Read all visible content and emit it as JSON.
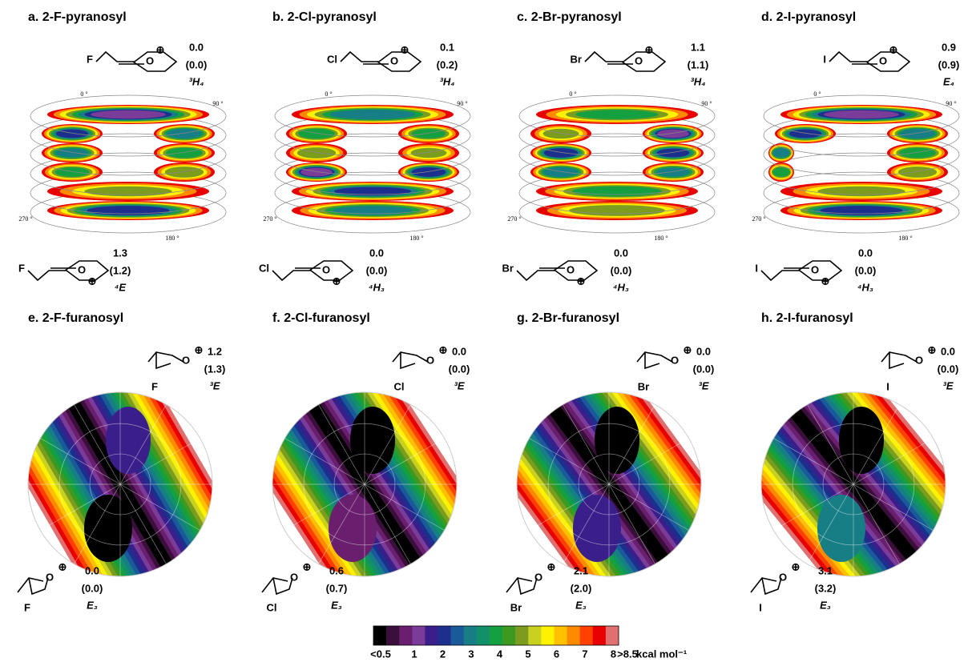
{
  "atom_o": "O",
  "charge": "⊕",
  "angle_labels": [
    "0 °",
    "90 °",
    "180 °",
    "270 °"
  ],
  "panels": [
    {
      "title": "a. 2-F-pyranosyl",
      "substituent": "F",
      "top": {
        "energy": "0.0",
        "energy_alt": "(0.0)",
        "conformer": "³H₄"
      },
      "bottom": {
        "energy": "1.3",
        "energy_alt": "(1.2)",
        "conformer": "⁴E"
      }
    },
    {
      "title": "b. 2-Cl-pyranosyl",
      "substituent": "Cl",
      "top": {
        "energy": "0.1",
        "energy_alt": "(0.2)",
        "conformer": "³H₄"
      },
      "bottom": {
        "energy": "0.0",
        "energy_alt": "(0.0)",
        "conformer": "⁴H₃"
      }
    },
    {
      "title": "c. 2-Br-pyranosyl",
      "substituent": "Br",
      "top": {
        "energy": "1.1",
        "energy_alt": "(1.1)",
        "conformer": "³H₄"
      },
      "bottom": {
        "energy": "0.0",
        "energy_alt": "(0.0)",
        "conformer": "⁴H₃"
      }
    },
    {
      "title": "d. 2-I-pyranosyl",
      "substituent": "I",
      "top": {
        "energy": "0.9",
        "energy_alt": "(0.9)",
        "conformer": "E₄"
      },
      "bottom": {
        "energy": "0.0",
        "energy_alt": "(0.0)",
        "conformer": "⁴H₃"
      }
    },
    {
      "title": "e. 2-F-furanosyl",
      "substituent": "F",
      "top": {
        "energy": "1.2",
        "energy_alt": "(1.3)",
        "conformer": "³E"
      },
      "bottom": {
        "energy": "0.0",
        "energy_alt": "(0.0)",
        "conformer": "E₃"
      }
    },
    {
      "title": "f. 2-Cl-furanosyl",
      "substituent": "Cl",
      "top": {
        "energy": "0.0",
        "energy_alt": "(0.0)",
        "conformer": "³E"
      },
      "bottom": {
        "energy": "0.6",
        "energy_alt": "(0.7)",
        "conformer": "E₃"
      }
    },
    {
      "title": "g. 2-Br-furanosyl",
      "substituent": "Br",
      "top": {
        "energy": "0.0",
        "energy_alt": "(0.0)",
        "conformer": "³E"
      },
      "bottom": {
        "energy": "2.1",
        "energy_alt": "(2.0)",
        "conformer": "E₃"
      }
    },
    {
      "title": "h. 2-I-furanosyl",
      "substituent": "I",
      "top": {
        "energy": "0.0",
        "energy_alt": "(0.0)",
        "conformer": "³E"
      },
      "bottom": {
        "energy": "3.1",
        "energy_alt": "(3.2)",
        "conformer": "E₃"
      }
    }
  ],
  "colorbar": {
    "labels": [
      "<0.5",
      "1",
      "2",
      "3",
      "4",
      "5",
      "6",
      "7",
      "8",
      ">8.5"
    ],
    "unit": "kcal mol⁻¹",
    "colors": [
      "#000000",
      "#3b0f3b",
      "#6a1e6e",
      "#7a3c98",
      "#3a1f8a",
      "#1c2f8c",
      "#1a5a9a",
      "#177e86",
      "#12906a",
      "#14a040",
      "#3d9a20",
      "#7c9c20",
      "#c8d020",
      "#fff200",
      "#ffc000",
      "#ff8a00",
      "#ff4000",
      "#e80000",
      "#e07070"
    ]
  }
}
